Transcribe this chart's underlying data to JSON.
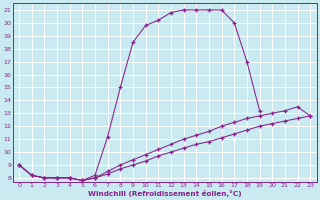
{
  "xlabel": "Windchill (Refroidissement éolien,°C)",
  "bg_color": "#c8eaf0",
  "grid_color": "#ffffff",
  "line_color": "#882288",
  "xlim": [
    -0.5,
    23.5
  ],
  "ylim": [
    7.7,
    21.5
  ],
  "xticks": [
    0,
    1,
    2,
    3,
    4,
    5,
    6,
    7,
    8,
    9,
    10,
    11,
    12,
    13,
    14,
    15,
    16,
    17,
    18,
    19,
    20,
    21,
    22,
    23
  ],
  "yticks": [
    8,
    9,
    10,
    11,
    12,
    13,
    14,
    15,
    16,
    17,
    18,
    19,
    20,
    21
  ],
  "line1_x": [
    0,
    1,
    2,
    3,
    4,
    5,
    6,
    7,
    8,
    9,
    10,
    11,
    12,
    13,
    14,
    15,
    16,
    17,
    18,
    19
  ],
  "line1_y": [
    9.0,
    8.2,
    8.0,
    8.0,
    8.0,
    7.8,
    8.2,
    11.2,
    15.0,
    18.5,
    19.8,
    20.2,
    20.8,
    21.0,
    21.0,
    21.0,
    21.0,
    20.0,
    17.0,
    13.2
  ],
  "line2_x": [
    0,
    1,
    2,
    3,
    4,
    5,
    6,
    7,
    8,
    9,
    10,
    11,
    12,
    13,
    14,
    15,
    16,
    17,
    18,
    19,
    20,
    21,
    22,
    23
  ],
  "line2_y": [
    9.0,
    8.2,
    8.0,
    8.0,
    8.0,
    7.8,
    8.0,
    8.5,
    9.0,
    9.4,
    9.8,
    10.2,
    10.6,
    11.0,
    11.3,
    11.6,
    12.0,
    12.3,
    12.6,
    12.8,
    13.0,
    13.2,
    13.5,
    12.8
  ],
  "line3_x": [
    0,
    1,
    2,
    3,
    4,
    5,
    6,
    7,
    8,
    9,
    10,
    11,
    12,
    13,
    14,
    15,
    16,
    17,
    18,
    19,
    20,
    21,
    22,
    23
  ],
  "line3_y": [
    9.0,
    8.2,
    8.0,
    8.0,
    8.0,
    7.8,
    8.0,
    8.3,
    8.7,
    9.0,
    9.3,
    9.7,
    10.0,
    10.3,
    10.6,
    10.8,
    11.1,
    11.4,
    11.7,
    12.0,
    12.2,
    12.4,
    12.6,
    12.8
  ]
}
